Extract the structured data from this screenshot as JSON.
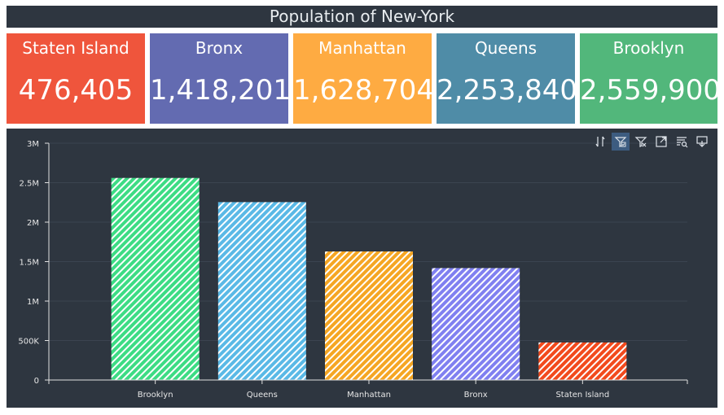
{
  "title": "Population of New-York",
  "cards": [
    {
      "name": "Staten Island",
      "value": "476,405",
      "color": "#ef553c"
    },
    {
      "name": "Bronx",
      "value": "1,418,201",
      "color": "#636bb1"
    },
    {
      "name": "Manhattan",
      "value": "1,628,704",
      "color": "#feab42"
    },
    {
      "name": "Queens",
      "value": "2,253,840",
      "color": "#4f8ca7"
    },
    {
      "name": "Brooklyn",
      "value": "2,559,900",
      "color": "#52b77b"
    }
  ],
  "toolbar": {
    "icons": [
      "sort-icon",
      "filter-icon",
      "clear-filter-icon",
      "expand-icon",
      "search-text-icon",
      "export-icon"
    ]
  },
  "chart_data": {
    "type": "bar",
    "categories": [
      "Brooklyn",
      "Queens",
      "Manhattan",
      "Bronx",
      "Staten Island"
    ],
    "values": [
      2559900,
      2253840,
      1628704,
      1418201,
      476405
    ],
    "colors": [
      "#3ddc84",
      "#5ab9e6",
      "#f5a623",
      "#8080f0",
      "#f24a1d"
    ],
    "yticks": [
      "0",
      "500K",
      "1M",
      "1.5M",
      "2M",
      "2.5M",
      "3M"
    ],
    "ylim": [
      0,
      3000000
    ],
    "title": "",
    "xlabel": "",
    "ylabel": "",
    "pattern": "diagonal-stripes",
    "grid": true,
    "legend": "none"
  }
}
